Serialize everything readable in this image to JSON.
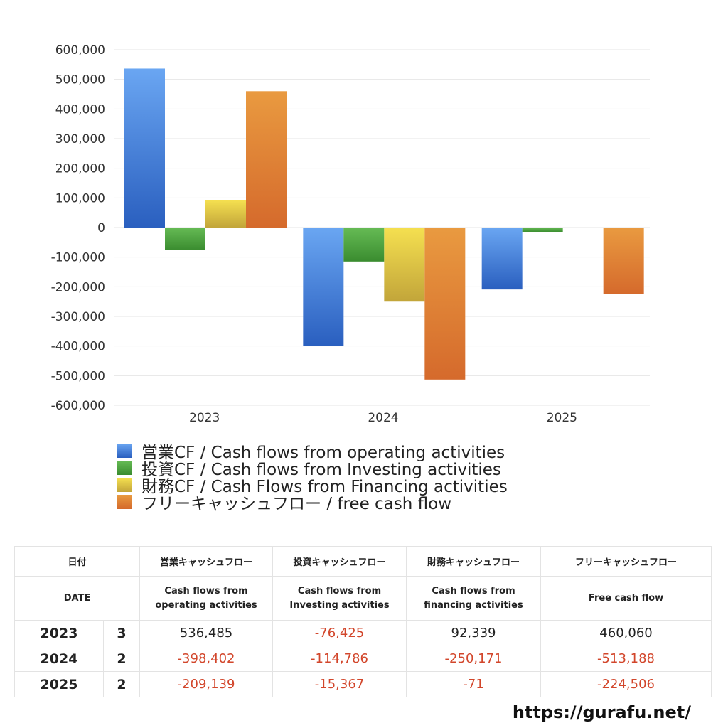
{
  "chart_data": {
    "type": "bar",
    "categories": [
      "2023",
      "2024",
      "2025"
    ],
    "series": [
      {
        "name": "営業CF / Cash flows from operating activities",
        "values": [
          536485,
          -398402,
          -209139
        ],
        "color_top": "#6aa6f2",
        "color_bottom": "#2a5fbf"
      },
      {
        "name": "投資CF / Cash flows from Investing activities",
        "values": [
          -76425,
          -114786,
          -15367
        ],
        "color_top": "#66bb55",
        "color_bottom": "#3a8c2f"
      },
      {
        "name": "財務CF / Cash Flows from Financing activities",
        "values": [
          92339,
          -250171,
          -71
        ],
        "color_top": "#f5e050",
        "color_bottom": "#c2a53a"
      },
      {
        "name": "フリーキャッシュフロー / free cash flow",
        "values": [
          460060,
          -513188,
          -224506
        ],
        "color_top": "#e99a40",
        "color_bottom": "#d56a2c"
      }
    ],
    "ylim": [
      -600000,
      600000
    ],
    "yticks": [
      "600,000",
      "500,000",
      "400,000",
      "300,000",
      "200,000",
      "100,000",
      "0",
      "-100,000",
      "-200,000",
      "-300,000",
      "-400,000",
      "-500,000",
      "-600,000"
    ],
    "grid": true,
    "legend_position": "bottom-left"
  },
  "table": {
    "headers_jp": [
      "日付",
      "営業キャッシュフロー",
      "投資キャッシュフロー",
      "財務キャッシュフロー",
      "フリーキャッシュフロー"
    ],
    "headers_en": [
      "DATE",
      "Cash flows from",
      "operating activities",
      "Cash flows from",
      "Investing activities",
      "Cash flows from",
      "financing activities",
      "Free cash flow"
    ],
    "rows": [
      {
        "year": "2023",
        "count": "3",
        "op": "536,485",
        "inv": "-76,425",
        "fin": "92,339",
        "fcf": "460,060"
      },
      {
        "year": "2024",
        "count": "2",
        "op": "-398,402",
        "inv": "-114,786",
        "fin": "-250,171",
        "fcf": "-513,188"
      },
      {
        "year": "2025",
        "count": "2",
        "op": "-209,139",
        "inv": "-15,367",
        "fin": "-71",
        "fcf": "-224,506"
      }
    ]
  },
  "footer": {
    "url": "https://gurafu.net/"
  }
}
